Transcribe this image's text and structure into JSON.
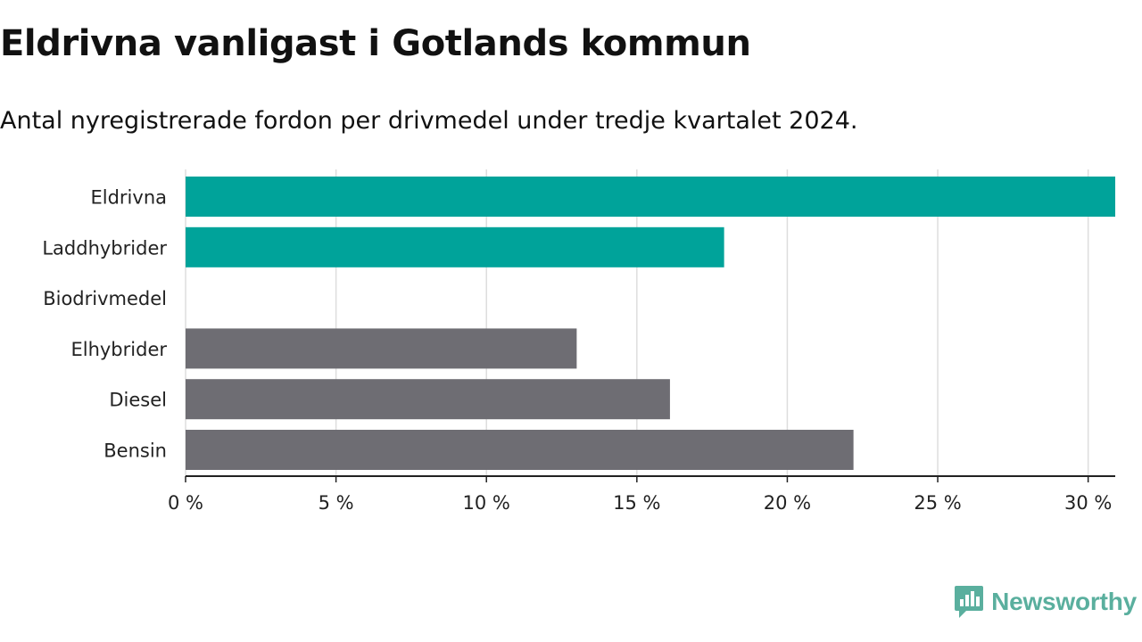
{
  "header": {
    "title": "Eldrivna vanligast i Gotlands kommun",
    "subtitle": "Antal nyregistrerade fordon per drivmedel under tredje kvartalet 2024."
  },
  "brand": {
    "name": "Newsworthy",
    "logo_icon": "newsworthy-logo-icon",
    "color": "#5aaf9e"
  },
  "colors": {
    "highlight": "#00a39a",
    "other": "#6e6d73",
    "grid": "#dddddd",
    "axis": "#222222"
  },
  "chart_data": {
    "type": "bar",
    "orientation": "horizontal",
    "categories": [
      "Eldrivna",
      "Laddhybrider",
      "Biodrivmedel",
      "Elhybrider",
      "Diesel",
      "Bensin"
    ],
    "values": [
      30.9,
      17.9,
      0,
      13.0,
      16.1,
      22.2
    ],
    "highlight": [
      true,
      true,
      true,
      false,
      false,
      false
    ],
    "x_ticks": [
      0,
      5,
      10,
      15,
      20,
      25,
      30
    ],
    "x_tick_labels": [
      "0 %",
      "5 %",
      "10 %",
      "15 %",
      "20 %",
      "25 %",
      "30 %"
    ],
    "xlim": [
      0,
      30.9
    ],
    "xlabel": "",
    "ylabel": "",
    "grid": "vertical"
  }
}
